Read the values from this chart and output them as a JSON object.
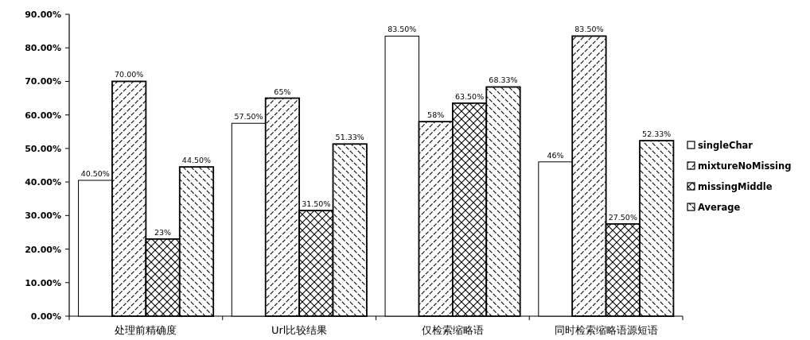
{
  "chart_data": {
    "type": "bar",
    "categories": [
      "处理前精确度",
      "Url比较结果",
      "仅检索缩略语",
      "同时检索缩略语源短语"
    ],
    "series": [
      {
        "name": "singleChar",
        "color": "#ffffff",
        "values": [
          40.5,
          57.5,
          83.5,
          46
        ],
        "value_labels": [
          "40.50%",
          "57.50%",
          "83.50%",
          "46%"
        ]
      },
      {
        "name": "mixtureNoMissing",
        "color": "#000000",
        "values": [
          70,
          65,
          58,
          83.5
        ],
        "value_labels": [
          "70.00%",
          "65%",
          "58%",
          "83.50%"
        ]
      },
      {
        "name": "missingMiddle",
        "color": "#000000",
        "values": [
          23,
          31.5,
          63.5,
          27.5
        ],
        "value_labels": [
          "23%",
          "31.50%",
          "63.50%",
          "27.50%"
        ]
      },
      {
        "name": "Average",
        "color": "#000000",
        "values": [
          44.5,
          51.33,
          68.33,
          52.33
        ],
        "value_labels": [
          "44.50%",
          "51.33%",
          "68.33%",
          "52.33%"
        ]
      }
    ],
    "ylim": [
      0,
      90
    ],
    "yticks": [
      {
        "value": 0,
        "label": "0.00%"
      },
      {
        "value": 10,
        "label": "10.00%"
      },
      {
        "value": 20,
        "label": "20.00%"
      },
      {
        "value": 30,
        "label": "30.00%"
      },
      {
        "value": 40,
        "label": "40.00%"
      },
      {
        "value": 50,
        "label": "50.00%"
      },
      {
        "value": 60,
        "label": "60.00%"
      },
      {
        "value": 70,
        "label": "70.00%"
      },
      {
        "value": 80,
        "label": "80.00%"
      },
      {
        "value": 90,
        "label": "90.00%"
      }
    ],
    "grid": false,
    "legend": "right"
  }
}
